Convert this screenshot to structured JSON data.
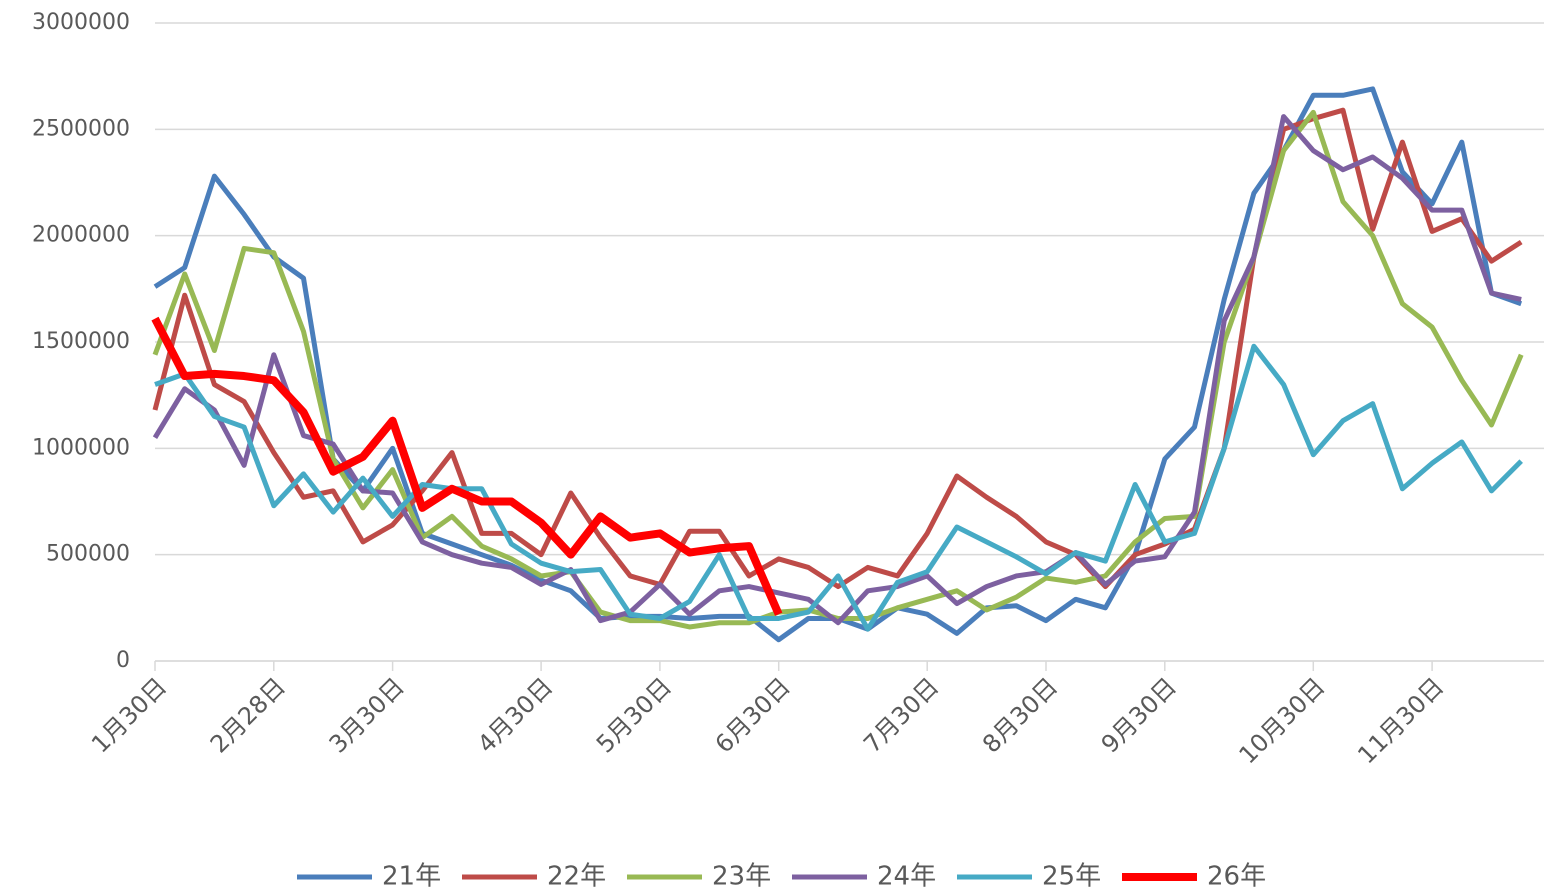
{
  "chart_data": {
    "type": "line",
    "categories": [
      "1月30日",
      null,
      null,
      null,
      "2月28日",
      null,
      null,
      null,
      "3月30日",
      null,
      null,
      null,
      null,
      "4月30日",
      null,
      null,
      null,
      "5月30日",
      null,
      null,
      null,
      "6月30日",
      null,
      null,
      null,
      null,
      "7月30日",
      null,
      null,
      null,
      "8月30日",
      null,
      null,
      null,
      "9月30日",
      null,
      null,
      null,
      null,
      "10月30日",
      null,
      null,
      null,
      "11月30日",
      null,
      null,
      null
    ],
    "series": [
      {
        "name": "21年",
        "color": "#4a7ebb",
        "values": [
          1760000,
          1850000,
          2280000,
          2100000,
          1900000,
          1800000,
          950000,
          800000,
          1000000,
          600000,
          550000,
          500000,
          450000,
          380000,
          330000,
          200000,
          210000,
          210000,
          200000,
          210000,
          210000,
          100000,
          200000,
          200000,
          150000,
          250000,
          220000,
          130000,
          250000,
          260000,
          190000,
          290000,
          250000,
          500000,
          950000,
          1100000,
          1700000,
          2200000,
          2400000,
          2660000,
          2660000,
          2690000,
          2300000,
          2150000,
          2440000,
          1730000,
          1680000
        ]
      },
      {
        "name": "22年",
        "color": "#be4b48",
        "values": [
          1180000,
          1720000,
          1300000,
          1220000,
          980000,
          770000,
          800000,
          560000,
          640000,
          800000,
          980000,
          600000,
          600000,
          500000,
          790000,
          580000,
          400000,
          360000,
          610000,
          610000,
          400000,
          480000,
          440000,
          350000,
          440000,
          400000,
          600000,
          870000,
          770000,
          680000,
          560000,
          500000,
          350000,
          500000,
          550000,
          620000,
          1000000,
          1900000,
          2500000,
          2550000,
          2590000,
          2030000,
          2440000,
          2020000,
          2080000,
          1880000,
          1970000
        ]
      },
      {
        "name": "23年",
        "color": "#98b954",
        "values": [
          1440000,
          1820000,
          1460000,
          1940000,
          1920000,
          1550000,
          950000,
          720000,
          900000,
          580000,
          680000,
          540000,
          480000,
          400000,
          420000,
          230000,
          190000,
          190000,
          160000,
          180000,
          180000,
          230000,
          240000,
          200000,
          200000,
          250000,
          290000,
          330000,
          240000,
          300000,
          390000,
          370000,
          400000,
          560000,
          670000,
          680000,
          1500000,
          1900000,
          2400000,
          2580000,
          2160000,
          2000000,
          1680000,
          1570000,
          1320000,
          1110000,
          1440000
        ]
      },
      {
        "name": "24年",
        "color": "#7d60a0",
        "values": [
          1050000,
          1280000,
          1180000,
          920000,
          1440000,
          1060000,
          1020000,
          800000,
          790000,
          560000,
          500000,
          460000,
          440000,
          360000,
          430000,
          190000,
          230000,
          360000,
          220000,
          330000,
          350000,
          320000,
          290000,
          180000,
          330000,
          350000,
          400000,
          270000,
          350000,
          400000,
          420000,
          510000,
          360000,
          470000,
          490000,
          700000,
          1600000,
          1900000,
          2560000,
          2400000,
          2310000,
          2370000,
          2270000,
          2120000,
          2120000,
          1730000,
          1700000
        ]
      },
      {
        "name": "25年",
        "color": "#46aac5",
        "values": [
          1300000,
          1350000,
          1150000,
          1100000,
          730000,
          880000,
          700000,
          860000,
          680000,
          830000,
          810000,
          810000,
          550000,
          460000,
          420000,
          430000,
          220000,
          200000,
          280000,
          500000,
          200000,
          200000,
          230000,
          400000,
          150000,
          370000,
          420000,
          630000,
          560000,
          490000,
          410000,
          510000,
          470000,
          830000,
          560000,
          600000,
          1000000,
          1480000,
          1300000,
          970000,
          1130000,
          1210000,
          810000,
          930000,
          1030000,
          800000,
          940000
        ]
      },
      {
        "name": "26年",
        "color": "#ff0000",
        "width": 8,
        "values": [
          1610000,
          1340000,
          1350000,
          1340000,
          1320000,
          1170000,
          890000,
          960000,
          1130000,
          720000,
          810000,
          750000,
          750000,
          650000,
          500000,
          680000,
          580000,
          600000,
          510000,
          530000,
          540000,
          220000,
          null,
          null,
          null,
          null,
          null,
          null,
          null,
          null,
          null,
          null,
          null,
          null,
          null,
          null,
          null,
          null,
          null,
          null,
          null,
          null,
          null,
          null,
          null,
          null,
          null
        ]
      }
    ],
    "ylim": [
      0,
      3000000
    ],
    "yticks": [
      0,
      500000,
      1000000,
      1500000,
      2000000,
      2500000,
      3000000
    ],
    "grid": true,
    "legend": "bottom"
  }
}
